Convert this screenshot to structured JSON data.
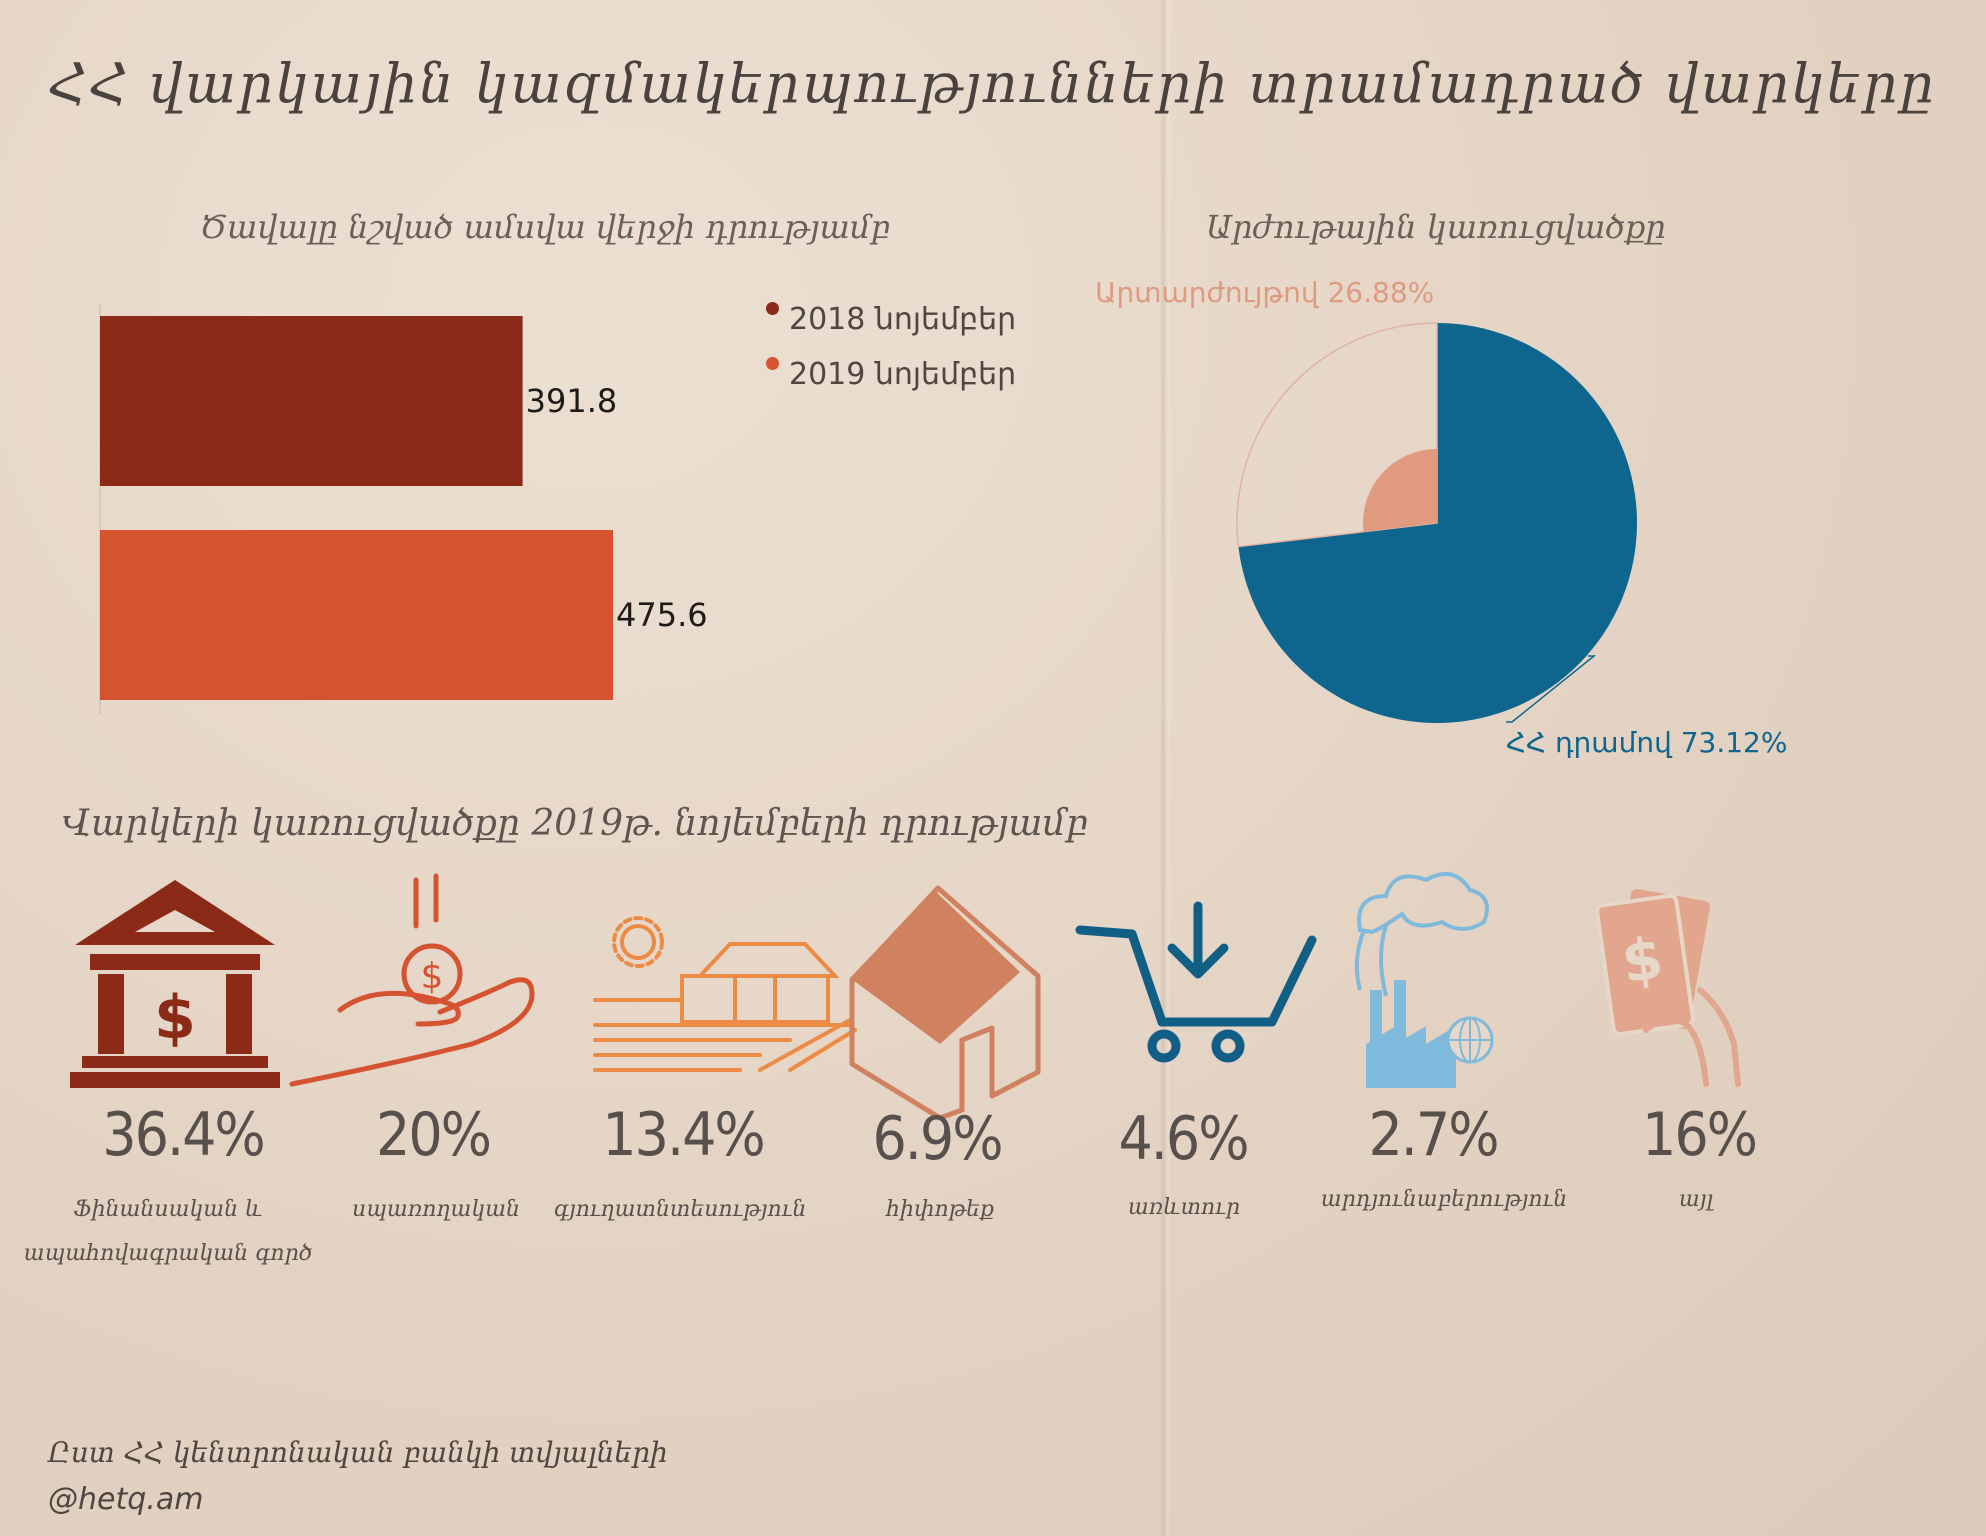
{
  "title": "ՀՀ վարկային կազմակերպությունների տրամադրած վարկերը",
  "bar_chart_title": "Ծավալը նշված ամսվա վերջի դրությամբ",
  "pie_chart_title": "Արժութային կառուցվածքը",
  "structure_title": "Վարկերի կառուցվածքը 2019թ. նոյեմբերի դրությամբ",
  "source": "Ըստ ՀՀ կենտրոնական բանկի տվյալների",
  "handle": "@hetq.am",
  "colors": {
    "bar_2018": "#8b2a17",
    "bar_2019": "#d65331",
    "pie_amd": "#0e668e",
    "pie_fx": "#df9a80",
    "icon_finance": "#8b2a17",
    "icon_services": "#d65331",
    "icon_agriculture": "#ec8b45",
    "icon_housing": "#d08160",
    "icon_trade": "#125f86",
    "icon_industry": "#7fb9dc",
    "icon_other": "#e2a58d"
  },
  "chart_data": [
    {
      "type": "bar",
      "orientation": "horizontal",
      "categories": [
        "2018 նոյեմբեր",
        "2019 նոյեմբեր"
      ],
      "values": [
        391.8,
        475.6
      ],
      "value_labels": [
        "391.8",
        "475.6"
      ],
      "legend": [
        "2018 նոյեմբեր",
        "2019 նոյեմբեր"
      ],
      "legend_placement": "right",
      "xlim": [
        0,
        475.6
      ]
    },
    {
      "type": "pie",
      "slices": [
        {
          "label": "ՀՀ դրամով",
          "value": 73.12,
          "display": "ՀՀ դրամով 73.12%"
        },
        {
          "label": "Արտարժույթով",
          "value": 26.88,
          "display": "Արտարժույթով 26.88%"
        }
      ]
    }
  ],
  "structure": [
    {
      "percent": "36.4%",
      "label": "Ֆինանսական և ապահովագրական գործ",
      "icon": "bank-icon"
    },
    {
      "percent": "20%",
      "label": "սպառողական",
      "icon": "hand-coin-icon"
    },
    {
      "percent": "13.4%",
      "label": "գյուղատնտեսություն",
      "icon": "farm-icon"
    },
    {
      "percent": "6.9%",
      "label": "հիփոթեք",
      "icon": "house-icon"
    },
    {
      "percent": "4.6%",
      "label": "առևտուր",
      "icon": "shopping-cart-icon"
    },
    {
      "percent": "2.7%",
      "label": "արդյունաբերություն",
      "icon": "factory-icon"
    },
    {
      "percent": "16%",
      "label": "այլ",
      "icon": "money-hand-icon"
    }
  ]
}
